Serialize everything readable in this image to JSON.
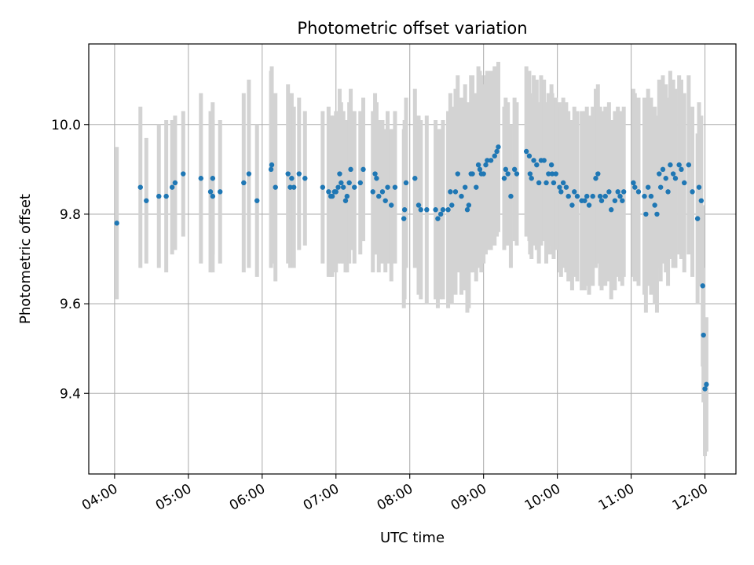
{
  "chart_data": {
    "type": "scatter",
    "title": "Photometric offset variation",
    "xlabel": "UTC time",
    "ylabel": "Photometric offset",
    "x_tick_labels": [
      "04:00",
      "05:00",
      "06:00",
      "07:00",
      "08:00",
      "09:00",
      "10:00",
      "11:00",
      "12:00"
    ],
    "x_tick_hours": [
      4,
      5,
      6,
      7,
      8,
      9,
      10,
      11,
      12
    ],
    "y_tick_labels": [
      "9.4",
      "9.6",
      "9.8",
      "10.0"
    ],
    "y_ticks": [
      9.4,
      9.6,
      9.8,
      10.0
    ],
    "xlim_hours": [
      3.65,
      12.42
    ],
    "ylim": [
      9.22,
      10.18
    ],
    "grid": true,
    "legend": "none",
    "colors": {
      "points": "#1f77b4",
      "error_bars": "#d3d3d3",
      "grid": "#b0b0b0",
      "axes": "#000000"
    },
    "points": [
      {
        "t": 4.03,
        "y": 9.78,
        "e": 0.17
      },
      {
        "t": 4.35,
        "y": 9.86,
        "e": 0.18
      },
      {
        "t": 4.43,
        "y": 9.83,
        "e": 0.14
      },
      {
        "t": 4.6,
        "y": 9.84,
        "e": 0.16
      },
      {
        "t": 4.7,
        "y": 9.84,
        "e": 0.17
      },
      {
        "t": 4.78,
        "y": 9.86,
        "e": 0.15
      },
      {
        "t": 4.82,
        "y": 9.87,
        "e": 0.15
      },
      {
        "t": 4.93,
        "y": 9.89,
        "e": 0.14
      },
      {
        "t": 5.17,
        "y": 9.88,
        "e": 0.19
      },
      {
        "t": 5.3,
        "y": 9.85,
        "e": 0.18
      },
      {
        "t": 5.33,
        "y": 9.84,
        "e": 0.17
      },
      {
        "t": 5.33,
        "y": 9.88,
        "e": 0.17
      },
      {
        "t": 5.43,
        "y": 9.85,
        "e": 0.16
      },
      {
        "t": 5.75,
        "y": 9.87,
        "e": 0.2
      },
      {
        "t": 5.82,
        "y": 9.89,
        "e": 0.21
      },
      {
        "t": 5.93,
        "y": 9.83,
        "e": 0.17
      },
      {
        "t": 6.12,
        "y": 9.9,
        "e": 0.22
      },
      {
        "t": 6.13,
        "y": 9.91,
        "e": 0.22
      },
      {
        "t": 6.18,
        "y": 9.86,
        "e": 0.21
      },
      {
        "t": 6.35,
        "y": 9.89,
        "e": 0.2
      },
      {
        "t": 6.38,
        "y": 9.86,
        "e": 0.18
      },
      {
        "t": 6.4,
        "y": 9.88,
        "e": 0.19
      },
      {
        "t": 6.43,
        "y": 9.86,
        "e": 0.18
      },
      {
        "t": 6.5,
        "y": 9.89,
        "e": 0.17
      },
      {
        "t": 6.58,
        "y": 9.88,
        "e": 0.15
      },
      {
        "t": 6.82,
        "y": 9.86,
        "e": 0.17
      },
      {
        "t": 6.9,
        "y": 9.85,
        "e": 0.19
      },
      {
        "t": 6.93,
        "y": 9.84,
        "e": 0.18
      },
      {
        "t": 6.95,
        "y": 9.84,
        "e": 0.18
      },
      {
        "t": 6.98,
        "y": 9.85,
        "e": 0.17
      },
      {
        "t": 7.0,
        "y": 9.85,
        "e": 0.18
      },
      {
        "t": 7.03,
        "y": 9.86,
        "e": 0.17
      },
      {
        "t": 7.05,
        "y": 9.89,
        "e": 0.19
      },
      {
        "t": 7.07,
        "y": 9.87,
        "e": 0.18
      },
      {
        "t": 7.1,
        "y": 9.86,
        "e": 0.17
      },
      {
        "t": 7.13,
        "y": 9.83,
        "e": 0.16
      },
      {
        "t": 7.15,
        "y": 9.84,
        "e": 0.17
      },
      {
        "t": 7.18,
        "y": 9.87,
        "e": 0.18
      },
      {
        "t": 7.2,
        "y": 9.9,
        "e": 0.18
      },
      {
        "t": 7.25,
        "y": 9.86,
        "e": 0.17
      },
      {
        "t": 7.33,
        "y": 9.87,
        "e": 0.16
      },
      {
        "t": 7.37,
        "y": 9.9,
        "e": 0.16
      },
      {
        "t": 7.5,
        "y": 9.85,
        "e": 0.18
      },
      {
        "t": 7.53,
        "y": 9.89,
        "e": 0.18
      },
      {
        "t": 7.55,
        "y": 9.88,
        "e": 0.17
      },
      {
        "t": 7.58,
        "y": 9.84,
        "e": 0.17
      },
      {
        "t": 7.63,
        "y": 9.85,
        "e": 0.16
      },
      {
        "t": 7.67,
        "y": 9.83,
        "e": 0.16
      },
      {
        "t": 7.7,
        "y": 9.86,
        "e": 0.17
      },
      {
        "t": 7.75,
        "y": 9.82,
        "e": 0.17
      },
      {
        "t": 7.8,
        "y": 9.86,
        "e": 0.17
      },
      {
        "t": 7.92,
        "y": 9.79,
        "e": 0.2
      },
      {
        "t": 7.93,
        "y": 9.81,
        "e": 0.2
      },
      {
        "t": 7.95,
        "y": 9.87,
        "e": 0.19
      },
      {
        "t": 8.07,
        "y": 9.88,
        "e": 0.2
      },
      {
        "t": 8.12,
        "y": 9.82,
        "e": 0.2
      },
      {
        "t": 8.15,
        "y": 9.81,
        "e": 0.2
      },
      {
        "t": 8.23,
        "y": 9.81,
        "e": 0.21
      },
      {
        "t": 8.35,
        "y": 9.81,
        "e": 0.2
      },
      {
        "t": 8.38,
        "y": 9.79,
        "e": 0.2
      },
      {
        "t": 8.42,
        "y": 9.8,
        "e": 0.19
      },
      {
        "t": 8.45,
        "y": 9.81,
        "e": 0.2
      },
      {
        "t": 8.52,
        "y": 9.81,
        "e": 0.22
      },
      {
        "t": 8.55,
        "y": 9.85,
        "e": 0.22
      },
      {
        "t": 8.57,
        "y": 9.82,
        "e": 0.22
      },
      {
        "t": 8.62,
        "y": 9.85,
        "e": 0.23
      },
      {
        "t": 8.65,
        "y": 9.89,
        "e": 0.22
      },
      {
        "t": 8.7,
        "y": 9.84,
        "e": 0.22
      },
      {
        "t": 8.75,
        "y": 9.86,
        "e": 0.23
      },
      {
        "t": 8.78,
        "y": 9.81,
        "e": 0.23
      },
      {
        "t": 8.8,
        "y": 9.82,
        "e": 0.23
      },
      {
        "t": 8.83,
        "y": 9.89,
        "e": 0.22
      },
      {
        "t": 8.85,
        "y": 9.89,
        "e": 0.22
      },
      {
        "t": 8.9,
        "y": 9.86,
        "e": 0.21
      },
      {
        "t": 8.93,
        "y": 9.91,
        "e": 0.22
      },
      {
        "t": 8.95,
        "y": 9.9,
        "e": 0.22
      },
      {
        "t": 8.97,
        "y": 9.89,
        "e": 0.22
      },
      {
        "t": 9.0,
        "y": 9.89,
        "e": 0.2
      },
      {
        "t": 9.03,
        "y": 9.91,
        "e": 0.2
      },
      {
        "t": 9.05,
        "y": 9.92,
        "e": 0.2
      },
      {
        "t": 9.1,
        "y": 9.92,
        "e": 0.2
      },
      {
        "t": 9.15,
        "y": 9.93,
        "e": 0.2
      },
      {
        "t": 9.18,
        "y": 9.94,
        "e": 0.19
      },
      {
        "t": 9.2,
        "y": 9.95,
        "e": 0.19
      },
      {
        "t": 9.28,
        "y": 9.88,
        "e": 0.16
      },
      {
        "t": 9.3,
        "y": 9.9,
        "e": 0.16
      },
      {
        "t": 9.33,
        "y": 9.89,
        "e": 0.16
      },
      {
        "t": 9.37,
        "y": 9.84,
        "e": 0.16
      },
      {
        "t": 9.42,
        "y": 9.9,
        "e": 0.16
      },
      {
        "t": 9.45,
        "y": 9.89,
        "e": 0.16
      },
      {
        "t": 9.58,
        "y": 9.94,
        "e": 0.19
      },
      {
        "t": 9.62,
        "y": 9.93,
        "e": 0.19
      },
      {
        "t": 9.63,
        "y": 9.89,
        "e": 0.18
      },
      {
        "t": 9.65,
        "y": 9.88,
        "e": 0.18
      },
      {
        "t": 9.68,
        "y": 9.92,
        "e": 0.19
      },
      {
        "t": 9.72,
        "y": 9.91,
        "e": 0.19
      },
      {
        "t": 9.75,
        "y": 9.87,
        "e": 0.18
      },
      {
        "t": 9.78,
        "y": 9.92,
        "e": 0.19
      },
      {
        "t": 9.82,
        "y": 9.92,
        "e": 0.18
      },
      {
        "t": 9.85,
        "y": 9.87,
        "e": 0.18
      },
      {
        "t": 9.88,
        "y": 9.89,
        "e": 0.18
      },
      {
        "t": 9.92,
        "y": 9.91,
        "e": 0.18
      },
      {
        "t": 9.93,
        "y": 9.89,
        "e": 0.18
      },
      {
        "t": 9.95,
        "y": 9.87,
        "e": 0.17
      },
      {
        "t": 9.98,
        "y": 9.89,
        "e": 0.17
      },
      {
        "t": 10.03,
        "y": 9.86,
        "e": 0.19
      },
      {
        "t": 10.05,
        "y": 9.85,
        "e": 0.19
      },
      {
        "t": 10.08,
        "y": 9.87,
        "e": 0.19
      },
      {
        "t": 10.12,
        "y": 9.86,
        "e": 0.19
      },
      {
        "t": 10.15,
        "y": 9.84,
        "e": 0.19
      },
      {
        "t": 10.2,
        "y": 9.82,
        "e": 0.19
      },
      {
        "t": 10.23,
        "y": 9.85,
        "e": 0.19
      },
      {
        "t": 10.27,
        "y": 9.84,
        "e": 0.19
      },
      {
        "t": 10.33,
        "y": 9.83,
        "e": 0.2
      },
      {
        "t": 10.37,
        "y": 9.83,
        "e": 0.2
      },
      {
        "t": 10.4,
        "y": 9.84,
        "e": 0.2
      },
      {
        "t": 10.43,
        "y": 9.82,
        "e": 0.2
      },
      {
        "t": 10.48,
        "y": 9.84,
        "e": 0.2
      },
      {
        "t": 10.52,
        "y": 9.88,
        "e": 0.2
      },
      {
        "t": 10.55,
        "y": 9.89,
        "e": 0.2
      },
      {
        "t": 10.58,
        "y": 9.84,
        "e": 0.2
      },
      {
        "t": 10.6,
        "y": 9.83,
        "e": 0.2
      },
      {
        "t": 10.65,
        "y": 9.84,
        "e": 0.2
      },
      {
        "t": 10.7,
        "y": 9.85,
        "e": 0.2
      },
      {
        "t": 10.73,
        "y": 9.81,
        "e": 0.2
      },
      {
        "t": 10.78,
        "y": 9.83,
        "e": 0.2
      },
      {
        "t": 10.82,
        "y": 9.85,
        "e": 0.19
      },
      {
        "t": 10.85,
        "y": 9.84,
        "e": 0.19
      },
      {
        "t": 10.88,
        "y": 9.83,
        "e": 0.19
      },
      {
        "t": 10.9,
        "y": 9.85,
        "e": 0.19
      },
      {
        "t": 11.03,
        "y": 9.87,
        "e": 0.21
      },
      {
        "t": 11.05,
        "y": 9.86,
        "e": 0.21
      },
      {
        "t": 11.1,
        "y": 9.85,
        "e": 0.21
      },
      {
        "t": 11.18,
        "y": 9.84,
        "e": 0.22
      },
      {
        "t": 11.2,
        "y": 9.8,
        "e": 0.22
      },
      {
        "t": 11.23,
        "y": 9.86,
        "e": 0.22
      },
      {
        "t": 11.27,
        "y": 9.84,
        "e": 0.22
      },
      {
        "t": 11.32,
        "y": 9.82,
        "e": 0.22
      },
      {
        "t": 11.35,
        "y": 9.8,
        "e": 0.22
      },
      {
        "t": 11.38,
        "y": 9.89,
        "e": 0.21
      },
      {
        "t": 11.4,
        "y": 9.86,
        "e": 0.21
      },
      {
        "t": 11.43,
        "y": 9.9,
        "e": 0.21
      },
      {
        "t": 11.47,
        "y": 9.88,
        "e": 0.21
      },
      {
        "t": 11.5,
        "y": 9.85,
        "e": 0.21
      },
      {
        "t": 11.53,
        "y": 9.91,
        "e": 0.21
      },
      {
        "t": 11.57,
        "y": 9.89,
        "e": 0.21
      },
      {
        "t": 11.6,
        "y": 9.88,
        "e": 0.2
      },
      {
        "t": 11.65,
        "y": 9.91,
        "e": 0.2
      },
      {
        "t": 11.68,
        "y": 9.9,
        "e": 0.2
      },
      {
        "t": 11.72,
        "y": 9.87,
        "e": 0.2
      },
      {
        "t": 11.78,
        "y": 9.91,
        "e": 0.2
      },
      {
        "t": 11.83,
        "y": 9.85,
        "e": 0.19
      },
      {
        "t": 11.9,
        "y": 9.79,
        "e": 0.19
      },
      {
        "t": 11.92,
        "y": 9.86,
        "e": 0.19
      },
      {
        "t": 11.95,
        "y": 9.83,
        "e": 0.19
      },
      {
        "t": 11.97,
        "y": 9.64,
        "e": 0.18
      },
      {
        "t": 11.98,
        "y": 9.53,
        "e": 0.15
      },
      {
        "t": 12.0,
        "y": 9.41,
        "e": 0.15
      },
      {
        "t": 12.02,
        "y": 9.42,
        "e": 0.15
      }
    ]
  }
}
